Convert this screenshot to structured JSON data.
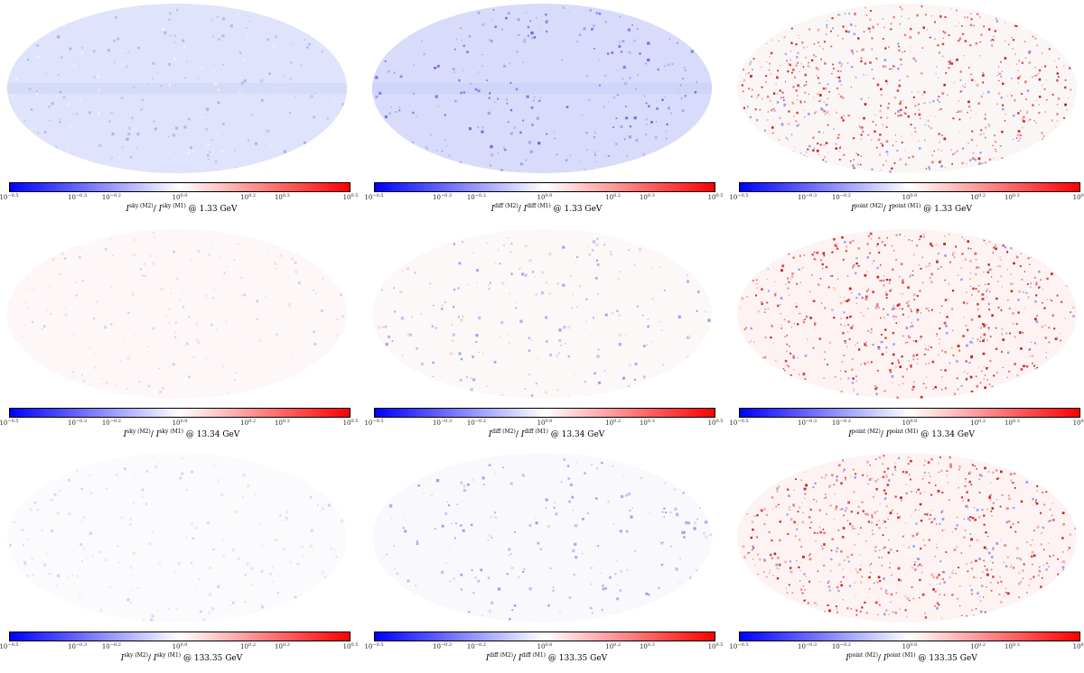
{
  "colorbar": {
    "colors": {
      "low": "#0000ff",
      "mid": "#ffffff",
      "high": "#ff0000"
    },
    "ticks": [
      {
        "base": "10",
        "exp": "−0.5"
      },
      {
        "base": "10",
        "exp": "−0.3"
      },
      {
        "base": "10",
        "exp": "−0.2"
      },
      {
        "base": "10",
        "exp": "0.0"
      },
      {
        "base": "10",
        "exp": "0.2"
      },
      {
        "base": "10",
        "exp": "0.3"
      },
      {
        "base": "10",
        "exp": "0.5"
      }
    ]
  },
  "panels": [
    {
      "I": "I",
      "num_sup": "sky (M2)",
      "den_sup": "sky (M1)",
      "slash": "/",
      "at": "@",
      "energy": "1.33 GeV",
      "tint": "#dfe3fb",
      "spots": "mixed-blue"
    },
    {
      "I": "I",
      "num_sup": "diff (M2)",
      "den_sup": "diff (M1)",
      "slash": "/",
      "at": "@",
      "energy": "1.33 GeV",
      "tint": "#d8dcfa",
      "spots": "blue"
    },
    {
      "I": "I",
      "num_sup": "point (M2)",
      "den_sup": "point (M1)",
      "slash": "/",
      "at": "@",
      "energy": "1.33 GeV",
      "tint": "#fbf6f6",
      "spots": "red"
    },
    {
      "I": "I",
      "num_sup": "sky (M2)",
      "den_sup": "sky (M1)",
      "slash": "/",
      "at": "@",
      "energy": "13.34 GeV",
      "tint": "#fdf8f7",
      "spots": "faint"
    },
    {
      "I": "I",
      "num_sup": "diff (M2)",
      "den_sup": "diff (M1)",
      "slash": "/",
      "at": "@",
      "energy": "13.34 GeV",
      "tint": "#fcf8f8",
      "spots": "blue-light"
    },
    {
      "I": "I",
      "num_sup": "point (M2)",
      "den_sup": "point (M1)",
      "slash": "/",
      "at": "@",
      "energy": "13.34 GeV",
      "tint": "#fdf3f3",
      "spots": "red"
    },
    {
      "I": "I",
      "num_sup": "sky (M2)",
      "den_sup": "sky (M1)",
      "slash": "/",
      "at": "@",
      "energy": "133.35 GeV",
      "tint": "#fbfafc",
      "spots": "faint"
    },
    {
      "I": "I",
      "num_sup": "diff (M2)",
      "den_sup": "diff (M1)",
      "slash": "/",
      "at": "@",
      "energy": "133.35 GeV",
      "tint": "#f9f9fd",
      "spots": "blue-light"
    },
    {
      "I": "I",
      "num_sup": "point (M2)",
      "den_sup": "point (M1)",
      "slash": "/",
      "at": "@",
      "energy": "133.35 GeV",
      "tint": "#fdf3f3",
      "spots": "red"
    }
  ]
}
